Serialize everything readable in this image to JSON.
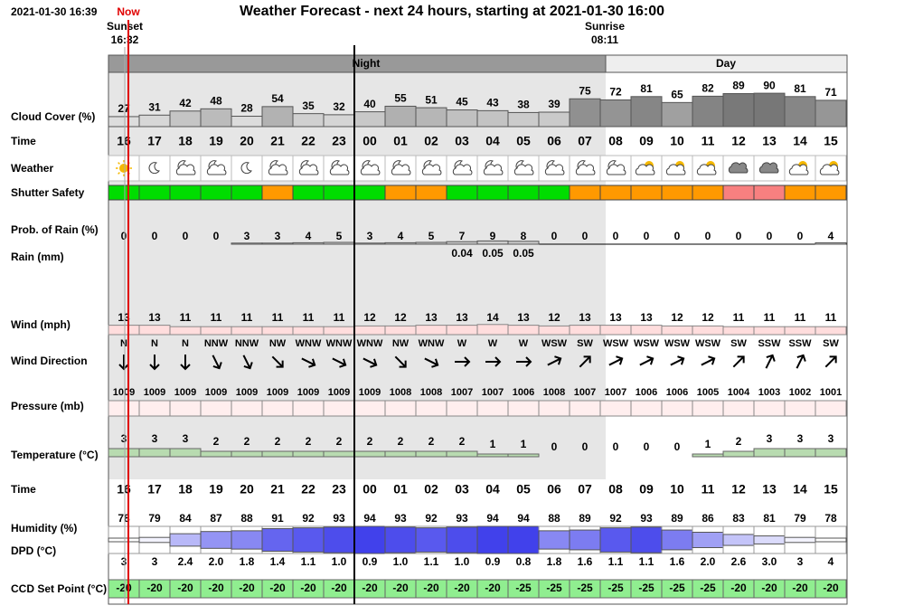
{
  "header": {
    "timestamp": "2021-01-30 16:39",
    "now": "Now",
    "title": "Weather Forecast - next 24 hours, starting at 2021-01-30 16:00",
    "sunset": {
      "label": "Sunset",
      "time": "16:32"
    },
    "sunrise": {
      "label": "Sunrise",
      "time": "08:11"
    },
    "night": "Night",
    "day": "Day"
  },
  "row_labels": {
    "cloud_cover": "Cloud Cover (%)",
    "time": "Time",
    "weather": "Weather",
    "shutter_safety": "Shutter Safety",
    "rain_probability": "Prob. of Rain (%)",
    "rain": "Rain (mm)",
    "wind_speed": "Wind (mph)",
    "wind_direction": "Wind Direction",
    "pressure": "Pressure (mb)",
    "temperature": "Temperature (°C)",
    "humidity": "Humidity (%)",
    "dpd": "DPD (°C)",
    "ccd_set_point": "CCD Set Point (°C)"
  },
  "hours": [
    "16",
    "17",
    "18",
    "19",
    "20",
    "21",
    "22",
    "23",
    "00",
    "01",
    "02",
    "03",
    "04",
    "05",
    "06",
    "07",
    "08",
    "09",
    "10",
    "11",
    "12",
    "13",
    "14",
    "15"
  ],
  "cloud_cover": [
    27,
    31,
    42,
    48,
    28,
    54,
    35,
    32,
    40,
    55,
    51,
    45,
    43,
    38,
    39,
    75,
    72,
    81,
    65,
    82,
    89,
    90,
    81,
    71
  ],
  "weather": [
    "sun",
    "moon",
    "cloud-moon",
    "cloud-moon",
    "moon",
    "cloud-moon",
    "cloud-moon",
    "cloud-moon",
    "cloud-moon",
    "cloud-moon",
    "cloud-moon",
    "cloud-moon",
    "cloud-moon",
    "cloud-moon",
    "cloud-moon",
    "cloud-moon",
    "cloud-moon",
    "cloud-sun",
    "cloud-sun",
    "cloud-sun",
    "cloud",
    "cloud",
    "cloud-sun",
    "cloud-sun"
  ],
  "shutter_safety": [
    "#00dd00",
    "#00dd00",
    "#00dd00",
    "#00dd00",
    "#00dd00",
    "#ff9900",
    "#00dd00",
    "#00dd00",
    "#00dd00",
    "#ff9900",
    "#ff9900",
    "#00dd00",
    "#00dd00",
    "#00dd00",
    "#00dd00",
    "#ff9900",
    "#ff9900",
    "#ff9900",
    "#ff9900",
    "#ff9900",
    "#f88080",
    "#f88080",
    "#ff9900",
    "#ff9900"
  ],
  "rain_probability": [
    0,
    0,
    0,
    0,
    3,
    3,
    4,
    5,
    3,
    4,
    5,
    7,
    9,
    8,
    0,
    0,
    0,
    0,
    0,
    0,
    0,
    0,
    0,
    4
  ],
  "rain": [
    null,
    null,
    null,
    null,
    null,
    null,
    null,
    null,
    null,
    null,
    null,
    0.04,
    0.05,
    0.05,
    null,
    null,
    null,
    null,
    null,
    null,
    null,
    null,
    null,
    null
  ],
  "wind_speed": [
    13,
    13,
    11,
    11,
    11,
    11,
    11,
    11,
    12,
    12,
    13,
    13,
    14,
    13,
    12,
    13,
    13,
    13,
    12,
    12,
    11,
    11,
    11,
    11
  ],
  "wind_direction": [
    "N",
    "N",
    "N",
    "NNW",
    "NNW",
    "NW",
    "WNW",
    "WNW",
    "WNW",
    "NW",
    "WNW",
    "W",
    "W",
    "W",
    "WSW",
    "SW",
    "WSW",
    "WSW",
    "WSW",
    "WSW",
    "SW",
    "SSW",
    "SSW",
    "SW"
  ],
  "pressure": [
    1009,
    1009,
    1009,
    1009,
    1009,
    1009,
    1009,
    1009,
    1009,
    1008,
    1008,
    1007,
    1007,
    1006,
    1008,
    1007,
    1007,
    1006,
    1006,
    1005,
    1004,
    1003,
    1002,
    1001
  ],
  "temperature": [
    3,
    3,
    3,
    2,
    2,
    2,
    2,
    2,
    2,
    2,
    2,
    2,
    1,
    1,
    0,
    0,
    0,
    0,
    0,
    1,
    2,
    3,
    3,
    3
  ],
  "humidity": [
    78,
    79,
    84,
    87,
    88,
    91,
    92,
    93,
    94,
    93,
    92,
    93,
    94,
    94,
    88,
    89,
    92,
    93,
    89,
    86,
    83,
    81,
    79,
    78
  ],
  "dpd": {
    "values": [
      3,
      3,
      2.4,
      2.0,
      1.8,
      1.4,
      1.1,
      1.0,
      0.9,
      1.0,
      1.1,
      1.0,
      0.9,
      0.8,
      1.8,
      1.6,
      1.1,
      1.1,
      1.6,
      2.0,
      2.6,
      3.0,
      3,
      4
    ],
    "value_labels": [
      "3",
      "3",
      "2.4",
      "2.0",
      "1.8",
      "1.4",
      "1.1",
      "1.0",
      "0.9",
      "1.0",
      "1.1",
      "1.0",
      "0.9",
      "0.8",
      "1.8",
      "1.6",
      "1.1",
      "1.1",
      "1.6",
      "2.0",
      "2.6",
      "3.0",
      "3",
      "4"
    ]
  },
  "ccd_set_point": [
    -20,
    -20,
    -20,
    -20,
    -20,
    -20,
    -20,
    -20,
    -20,
    -20,
    -20,
    -20,
    -20,
    -25,
    -25,
    -25,
    -25,
    -25,
    -25,
    -25,
    -20,
    -20,
    -20,
    -20
  ]
}
